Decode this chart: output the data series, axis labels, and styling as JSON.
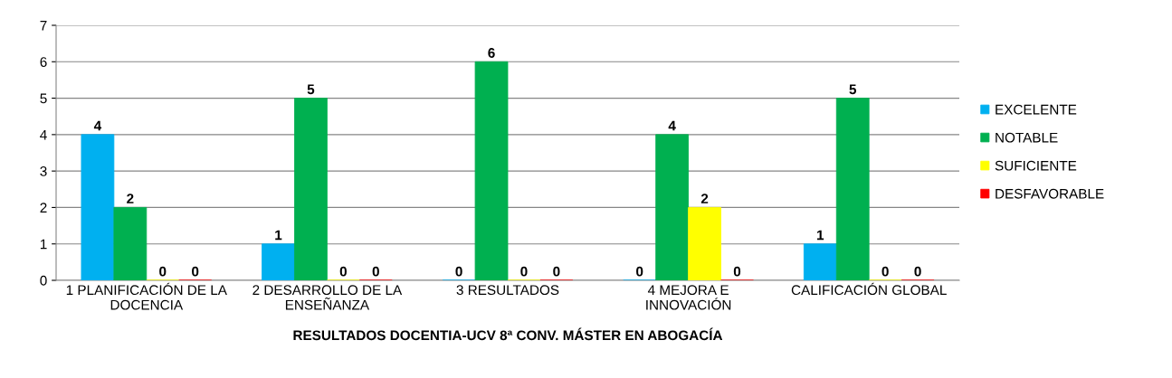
{
  "chart_data": {
    "type": "bar",
    "xlabel": "RESULTADOS DOCENTIA-UCV 8ª CONV. MÁSTER EN ABOGACÍA",
    "categories": [
      "1 PLANIFICACIÓN DE LA\nDOCENCIA",
      "2 DESARROLLO DE LA\nENSEÑANZA",
      "3 RESULTADOS",
      "4 MEJORA E\nINNOVACIÓN",
      "CALIFICACIÓN GLOBAL"
    ],
    "series": [
      {
        "name": "EXCELENTE",
        "color": "#00b0f0",
        "values": [
          4,
          1,
          0,
          0,
          1
        ]
      },
      {
        "name": "NOTABLE",
        "color": "#00b050",
        "values": [
          2,
          5,
          6,
          4,
          5
        ]
      },
      {
        "name": "SUFICIENTE",
        "color": "#ffff00",
        "values": [
          0,
          0,
          0,
          2,
          0
        ]
      },
      {
        "name": "DESFAVORABLE",
        "color": "#ff0000",
        "values": [
          0,
          0,
          0,
          0,
          0
        ]
      }
    ],
    "ylim": [
      0,
      7
    ],
    "yticks": [
      0,
      1,
      2,
      3,
      4,
      5,
      6,
      7
    ],
    "grid": "y",
    "legend": "right",
    "data_labels": true
  }
}
